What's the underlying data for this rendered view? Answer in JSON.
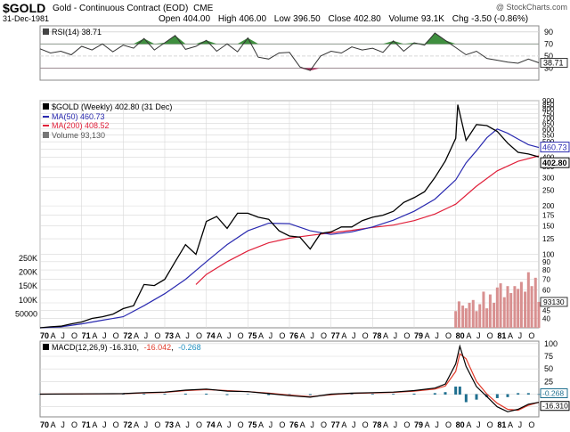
{
  "header": {
    "symbol": "$GOLD",
    "name": "Gold - Continuous Contract (EOD)",
    "exchange": "CME",
    "watermark": "@ StockCharts.com",
    "date": "31-Dec-1981",
    "open_label": "Open",
    "open": "404.00",
    "high_label": "High",
    "high": "406.00",
    "low_label": "Low",
    "low": "396.50",
    "close_label": "Close",
    "close": "402.80",
    "volume_label": "Volume",
    "volume": "93.1K",
    "chg_label": "Chg",
    "chg": "-3.50 (-0.86%)"
  },
  "colors": {
    "price": "#000000",
    "ma50": "#2a2ab0",
    "ma200": "#e0203a",
    "volume": "#d89090",
    "rsi_fill": "#3f8f3f",
    "rsi_fill_low": "#b03060",
    "macd_hist": "#1f6f8f",
    "macd_signal": "#e03a2a",
    "grid": "#d8d8d8"
  },
  "chart_data": [
    {
      "type": "line",
      "panel": "RSI",
      "legend": "RSI(14) 38.71",
      "last_value_label": "38.71",
      "ylim": [
        10,
        100
      ],
      "yticks": [
        30,
        50,
        70,
        90
      ],
      "overbought": 70,
      "oversold": 30,
      "series": [
        {
          "name": "RSI(14)",
          "x": [
            1970.0,
            1970.25,
            1970.5,
            1970.75,
            1971.0,
            1971.25,
            1971.5,
            1971.75,
            1972.0,
            1972.25,
            1972.5,
            1972.75,
            1973.0,
            1973.25,
            1973.5,
            1973.75,
            1974.0,
            1974.25,
            1974.5,
            1974.75,
            1975.0,
            1975.25,
            1975.5,
            1975.75,
            1976.0,
            1976.25,
            1976.5,
            1976.75,
            1977.0,
            1977.25,
            1977.5,
            1977.75,
            1978.0,
            1978.25,
            1978.5,
            1978.75,
            1979.0,
            1979.25,
            1979.5,
            1979.75,
            1980.0,
            1980.25,
            1980.5,
            1980.75,
            1981.0,
            1981.25,
            1981.5,
            1981.75,
            1982.0
          ],
          "values": [
            62,
            55,
            58,
            52,
            66,
            60,
            70,
            57,
            68,
            63,
            79,
            60,
            72,
            84,
            61,
            66,
            76,
            58,
            70,
            57,
            80,
            48,
            45,
            55,
            56,
            32,
            26,
            50,
            58,
            55,
            65,
            60,
            63,
            56,
            75,
            58,
            72,
            68,
            88,
            76,
            64,
            52,
            58,
            46,
            43,
            40,
            38,
            45,
            38.71
          ]
        }
      ]
    },
    {
      "type": "line",
      "panel": "Price",
      "legend": "$GOLD (Weekly) 402.80 (31 Dec)",
      "scale": "log",
      "ylim": [
        35,
        900
      ],
      "yticks": [
        40,
        45,
        50,
        60,
        70,
        80,
        90,
        100,
        125,
        150,
        175,
        200,
        250,
        300,
        350,
        400,
        450,
        500,
        550,
        600,
        650,
        700,
        750,
        800,
        850,
        900
      ],
      "right_axis_labels": [
        "900",
        "850",
        "800",
        "750",
        "700",
        "650",
        "600",
        "550",
        "500",
        "450",
        "400",
        "350",
        "300",
        "250",
        "200",
        "175",
        "150",
        "125",
        "100",
        "90",
        "80",
        "70",
        "60",
        "50",
        "45",
        "40"
      ],
      "last_value_labels": [
        "460.73",
        "402.80"
      ],
      "x_labels": [
        "70",
        "A",
        "J",
        "O",
        "71",
        "A",
        "J",
        "O",
        "72",
        "A",
        "J",
        "O",
        "73",
        "A",
        "J",
        "O",
        "74",
        "A",
        "J",
        "O",
        "75",
        "A",
        "J",
        "O",
        "76",
        "A",
        "J",
        "O",
        "77",
        "A",
        "J",
        "O",
        "78",
        "A",
        "J",
        "O",
        "79",
        "A",
        "J",
        "O",
        "80",
        "A",
        "J",
        "O",
        "81",
        "A",
        "J",
        "O"
      ],
      "series": [
        {
          "name": "$GOLD (Weekly) 402.80 (31 Dec)",
          "x": [
            1970.0,
            1970.25,
            1970.5,
            1970.75,
            1971.0,
            1971.25,
            1971.5,
            1971.75,
            1972.0,
            1972.25,
            1972.5,
            1972.75,
            1973.0,
            1973.25,
            1973.5,
            1973.75,
            1974.0,
            1974.25,
            1974.5,
            1974.75,
            1975.0,
            1975.25,
            1975.5,
            1975.75,
            1976.0,
            1976.25,
            1976.5,
            1976.75,
            1977.0,
            1977.25,
            1977.5,
            1977.75,
            1978.0,
            1978.25,
            1978.5,
            1978.75,
            1979.0,
            1979.25,
            1979.5,
            1979.75,
            1980.0,
            1980.05,
            1980.25,
            1980.5,
            1980.75,
            1981.0,
            1981.25,
            1981.5,
            1981.75,
            1982.0
          ],
          "values": [
            35,
            35.5,
            35.8,
            37,
            38,
            40,
            41,
            42.5,
            46,
            48,
            65,
            64,
            70,
            90,
            115,
            100,
            160,
            172,
            145,
            180,
            180,
            170,
            165,
            140,
            130,
            128,
            108,
            135,
            138,
            148,
            148,
            162,
            170,
            175,
            185,
            210,
            225,
            245,
            300,
            380,
            525,
            850,
            510,
            640,
            630,
            580,
            490,
            430,
            420,
            402.8
          ]
        },
        {
          "name": "MA(50) 460.73",
          "x": [
            1970.0,
            1970.5,
            1971.0,
            1971.5,
            1972.0,
            1972.5,
            1973.0,
            1973.5,
            1974.0,
            1974.5,
            1975.0,
            1975.5,
            1976.0,
            1976.5,
            1977.0,
            1977.5,
            1978.0,
            1978.5,
            1979.0,
            1979.5,
            1980.0,
            1980.25,
            1980.5,
            1980.75,
            1981.0,
            1981.25,
            1981.5,
            1981.75,
            1982.0
          ],
          "values": [
            35,
            35.5,
            37,
            39,
            41,
            48,
            57,
            70,
            90,
            115,
            140,
            156,
            155,
            140,
            133,
            138,
            148,
            163,
            185,
            220,
            290,
            370,
            440,
            530,
            600,
            565,
            520,
            480,
            460.73
          ]
        },
        {
          "name": "MA(200) 408.52",
          "x": [
            1973.75,
            1974.0,
            1974.5,
            1975.0,
            1975.5,
            1976.0,
            1976.5,
            1977.0,
            1977.5,
            1978.0,
            1978.5,
            1979.0,
            1979.5,
            1980.0,
            1980.5,
            1981.0,
            1981.5,
            1982.0
          ],
          "values": [
            65,
            75,
            90,
            105,
            118,
            126,
            131,
            136,
            141,
            147,
            152,
            162,
            178,
            205,
            265,
            330,
            378,
            408.52
          ]
        }
      ]
    },
    {
      "type": "bar",
      "panel": "Volume",
      "legend": "Volume 93,130",
      "last_value_label": "93130",
      "left_axis_labels": [
        "250K",
        "200K",
        "150K",
        "100K",
        "50000"
      ],
      "ylim": [
        0,
        250000
      ],
      "x": [
        1980.0,
        1980.08,
        1980.17,
        1980.25,
        1980.33,
        1980.42,
        1980.5,
        1980.58,
        1980.67,
        1980.75,
        1980.83,
        1980.92,
        1981.0,
        1981.08,
        1981.17,
        1981.25,
        1981.33,
        1981.42,
        1981.5,
        1981.58,
        1981.67,
        1981.75,
        1981.83,
        1981.92,
        1982.0
      ],
      "values": [
        60000,
        95000,
        80000,
        70000,
        90000,
        100000,
        60000,
        85000,
        130000,
        70000,
        120000,
        90000,
        145000,
        160000,
        110000,
        150000,
        125000,
        150000,
        140000,
        165000,
        130000,
        200000,
        150000,
        180000,
        93130
      ]
    },
    {
      "type": "line",
      "panel": "MACD",
      "legend": "MACD(12,26,9) -16.310, -16.042, -0.268",
      "legend_prefix": "MACD(12,26,9) -16.310,",
      "legend_signal": "-16.042",
      "legend_hist": "-0.268",
      "last_value_labels": [
        "-0.268",
        "-16.310"
      ],
      "ylim": [
        -45,
        105
      ],
      "yticks": [
        -25,
        0,
        25,
        50,
        75,
        100
      ],
      "series": [
        {
          "name": "MACD",
          "x": [
            1970.0,
            1971.0,
            1972.0,
            1972.5,
            1973.0,
            1973.5,
            1974.0,
            1974.5,
            1975.0,
            1975.5,
            1976.0,
            1976.5,
            1977.0,
            1977.5,
            1978.0,
            1978.5,
            1979.0,
            1979.5,
            1979.75,
            1980.0,
            1980.1,
            1980.25,
            1980.5,
            1980.75,
            1981.0,
            1981.25,
            1981.5,
            1981.75,
            1982.0
          ],
          "values": [
            0,
            0.5,
            1,
            3,
            4,
            8,
            10,
            6,
            5,
            1,
            -3,
            -6,
            0,
            2,
            3,
            4,
            7,
            12,
            20,
            60,
            95,
            55,
            15,
            -5,
            -25,
            -35,
            -30,
            -20,
            -16.31
          ]
        },
        {
          "name": "Signal",
          "x": [
            1970.0,
            1971.0,
            1972.0,
            1972.5,
            1973.0,
            1973.5,
            1974.0,
            1974.5,
            1975.0,
            1975.5,
            1976.0,
            1976.5,
            1977.0,
            1977.5,
            1978.0,
            1978.5,
            1979.0,
            1979.5,
            1979.75,
            1980.0,
            1980.1,
            1980.25,
            1980.5,
            1980.75,
            1981.0,
            1981.25,
            1981.5,
            1981.75,
            1982.0
          ],
          "values": [
            0,
            0.4,
            0.8,
            2.5,
            3.5,
            7,
            9,
            7,
            5,
            2,
            -2,
            -5,
            -1,
            1.5,
            2.5,
            3.5,
            6,
            10,
            16,
            45,
            80,
            70,
            25,
            0,
            -18,
            -30,
            -32,
            -22,
            -16.042
          ]
        }
      ]
    }
  ]
}
